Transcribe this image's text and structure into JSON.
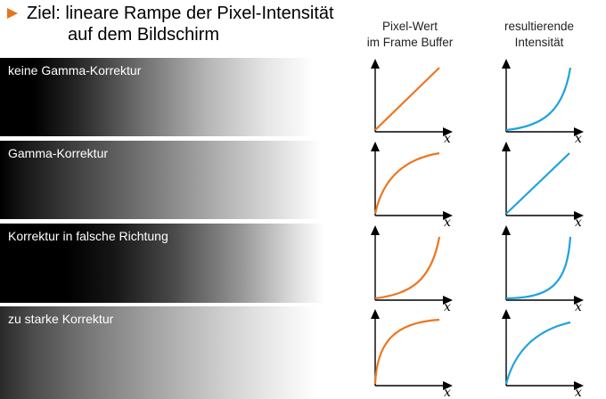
{
  "title": {
    "line1": "Ziel: lineare Rampe der Pixel-Intensität",
    "line2": "auf dem Bildschirm"
  },
  "column_headers": {
    "pixel_value": [
      "Pixel-Wert",
      "im Frame Buffer"
    ],
    "resulting_intensity": [
      "resultierende",
      "Intensität"
    ]
  },
  "rows": [
    {
      "label": "keine Gamma-Korrektur",
      "framebuffer_curve": "linear",
      "result_curve": "convex"
    },
    {
      "label": "Gamma-Korrektur",
      "framebuffer_curve": "concave",
      "result_curve": "linear"
    },
    {
      "label": "Korrektur in falsche Richtung",
      "framebuffer_curve": "convex",
      "result_curve": "strongly-convex"
    },
    {
      "label": "zu starke Korrektur",
      "framebuffer_curve": "strongly-concave",
      "result_curve": "concave"
    }
  ],
  "axis_label": "x",
  "colors": {
    "bullet": "#e8731c",
    "framebuffer_curve": "#ec7622",
    "result_curve": "#1fa3dc"
  }
}
